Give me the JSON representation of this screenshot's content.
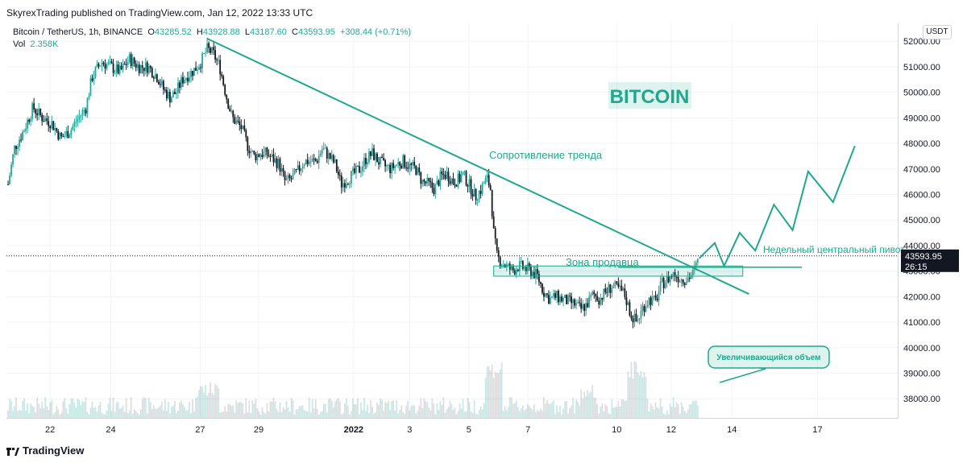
{
  "header": {
    "publisher": "SkyrexTrading published on TradingView.com, Jan 12, 2022 13:33 UTC"
  },
  "legend": {
    "symbol": "Bitcoin / TetherUS, 1h, BINANCE",
    "open_label": "O",
    "open": "43285.52",
    "high_label": "H",
    "high": "43928.88",
    "low_label": "L",
    "low": "43187.60",
    "close_label": "C",
    "close": "43593.95",
    "change": "+308.44 (+0.71%)",
    "vol_label": "Vol",
    "vol": "2.358K"
  },
  "currency": "USDT",
  "price_tag": {
    "price": "43593.95",
    "countdown": "26:15"
  },
  "footer": {
    "brand": "TradingView"
  },
  "colors": {
    "up": "#26a69a",
    "down": "#131722",
    "accent": "#1fa88e",
    "grid": "#f0f3fa"
  },
  "annotations": {
    "watermark": "BITCOIN",
    "trend_resistance": "Сопротивление тренда",
    "seller_zone": "Зона продавца",
    "weekly_pivot": "Недельный центральный пивот",
    "increasing_volume": "Увеличивающийся объем"
  },
  "chart_data": {
    "type": "candlestick",
    "title": "Bitcoin / TetherUS, 1h, BINANCE",
    "y_ticks": [
      38000,
      39000,
      40000,
      41000,
      42000,
      43000,
      44000,
      45000,
      46000,
      47000,
      48000,
      49000,
      50000,
      51000,
      52000
    ],
    "y_tick_labels": [
      "38000.00",
      "39000.00",
      "40000.00",
      "41000.00",
      "42000.00",
      "43000.00",
      "44000.00",
      "45000.00",
      "46000.00",
      "47000.00",
      "48000.00",
      "49000.00",
      "50000.00",
      "51000.00",
      "52000.00"
    ],
    "ylim": [
      37250,
      52700
    ],
    "x_ticks": [
      {
        "label": "22",
        "bold": false
      },
      {
        "label": "24",
        "bold": false
      },
      {
        "label": "27",
        "bold": false
      },
      {
        "label": "29",
        "bold": false
      },
      {
        "label": "2022",
        "bold": true
      },
      {
        "label": "3",
        "bold": false
      },
      {
        "label": "5",
        "bold": false
      },
      {
        "label": "7",
        "bold": false
      },
      {
        "label": "10",
        "bold": false
      },
      {
        "label": "12",
        "bold": false
      },
      {
        "label": "14",
        "bold": false
      },
      {
        "label": "17",
        "bold": false
      }
    ],
    "x_tick_index": [
      0.135,
      0.33,
      0.617,
      0.805,
      1.11,
      1.29,
      1.48,
      1.67,
      1.955,
      2.13,
      2.325,
      2.6
    ],
    "price_path": [
      [
        0.0,
        46400
      ],
      [
        0.02,
        47800
      ],
      [
        0.05,
        48500
      ],
      [
        0.08,
        49400
      ],
      [
        0.11,
        49000
      ],
      [
        0.14,
        48800
      ],
      [
        0.17,
        48200
      ],
      [
        0.2,
        48500
      ],
      [
        0.22,
        48900
      ],
      [
        0.25,
        49400
      ],
      [
        0.27,
        50600
      ],
      [
        0.3,
        51200
      ],
      [
        0.33,
        51000
      ],
      [
        0.36,
        50800
      ],
      [
        0.39,
        51300
      ],
      [
        0.42,
        51000
      ],
      [
        0.45,
        51000
      ],
      [
        0.48,
        50600
      ],
      [
        0.5,
        50100
      ],
      [
        0.52,
        49800
      ],
      [
        0.54,
        50000
      ],
      [
        0.56,
        50500
      ],
      [
        0.58,
        50700
      ],
      [
        0.6,
        50900
      ],
      [
        0.62,
        51200
      ],
      [
        0.64,
        51700
      ],
      [
        0.66,
        51500
      ],
      [
        0.68,
        51000
      ],
      [
        0.7,
        49900
      ],
      [
        0.72,
        49000
      ],
      [
        0.75,
        48600
      ],
      [
        0.77,
        47900
      ],
      [
        0.79,
        47500
      ],
      [
        0.81,
        47600
      ],
      [
        0.83,
        47600
      ],
      [
        0.85,
        47400
      ],
      [
        0.87,
        47200
      ],
      [
        0.89,
        46500
      ],
      [
        0.91,
        46600
      ],
      [
        0.93,
        46900
      ],
      [
        0.95,
        47300
      ],
      [
        0.97,
        47300
      ],
      [
        0.99,
        47300
      ],
      [
        1.01,
        47800
      ],
      [
        1.03,
        47500
      ],
      [
        1.05,
        47200
      ],
      [
        1.07,
        46400
      ],
      [
        1.09,
        46600
      ],
      [
        1.11,
        46800
      ],
      [
        1.13,
        47000
      ],
      [
        1.15,
        47400
      ],
      [
        1.17,
        47600
      ],
      [
        1.19,
        47300
      ],
      [
        1.21,
        47100
      ],
      [
        1.23,
        47000
      ],
      [
        1.25,
        47200
      ],
      [
        1.27,
        47300
      ],
      [
        1.29,
        47100
      ],
      [
        1.31,
        47000
      ],
      [
        1.33,
        46500
      ],
      [
        1.35,
        46400
      ],
      [
        1.37,
        46200
      ],
      [
        1.39,
        46700
      ],
      [
        1.41,
        46800
      ],
      [
        1.43,
        46500
      ],
      [
        1.45,
        46600
      ],
      [
        1.46,
        46800
      ],
      [
        1.47,
        46600
      ],
      [
        1.49,
        46200
      ],
      [
        1.5,
        45900
      ],
      [
        1.52,
        46200
      ],
      [
        1.53,
        46500
      ],
      [
        1.54,
        46600
      ],
      [
        1.55,
        46200
      ],
      [
        1.56,
        44500
      ],
      [
        1.57,
        43600
      ],
      [
        1.58,
        43400
      ],
      [
        1.6,
        43200
      ],
      [
        1.62,
        43000
      ],
      [
        1.64,
        43200
      ],
      [
        1.66,
        43100
      ],
      [
        1.68,
        43000
      ],
      [
        1.7,
        42800
      ],
      [
        1.72,
        42200
      ],
      [
        1.74,
        41900
      ],
      [
        1.76,
        42000
      ],
      [
        1.78,
        41900
      ],
      [
        1.8,
        41800
      ],
      [
        1.82,
        41700
      ],
      [
        1.84,
        41500
      ],
      [
        1.86,
        41700
      ],
      [
        1.88,
        42100
      ],
      [
        1.9,
        41900
      ],
      [
        1.92,
        42200
      ],
      [
        1.94,
        42400
      ],
      [
        1.96,
        42300
      ],
      [
        1.98,
        42100
      ],
      [
        2.0,
        41300
      ],
      [
        2.02,
        41000
      ],
      [
        2.04,
        41600
      ],
      [
        2.06,
        41900
      ],
      [
        2.08,
        41800
      ],
      [
        2.09,
        42200
      ],
      [
        2.1,
        42500
      ],
      [
        2.12,
        42700
      ],
      [
        2.14,
        42900
      ],
      [
        2.16,
        42700
      ],
      [
        2.18,
        42700
      ],
      [
        2.2,
        42900
      ],
      [
        2.22,
        43500
      ]
    ],
    "volume_scale": "Vol",
    "trendline": [
      [
        0.64,
        52100
      ],
      [
        2.38,
        42100
      ]
    ],
    "seller_zone": {
      "x0": 1.56,
      "x1": 2.36,
      "y0": 42800,
      "y1": 43200
    },
    "weekly_pivot": {
      "x0": 1.96,
      "x1": 2.55,
      "y": 43150
    },
    "projection": [
      [
        2.22,
        43500
      ],
      [
        2.27,
        44100
      ],
      [
        2.3,
        43200
      ],
      [
        2.35,
        44500
      ],
      [
        2.4,
        43800
      ],
      [
        2.46,
        45600
      ],
      [
        2.52,
        44600
      ],
      [
        2.57,
        46900
      ],
      [
        2.65,
        45700
      ],
      [
        2.72,
        47900
      ]
    ],
    "current_price": 43593.95,
    "volume_arrow": [
      [
        2.285,
        38600
      ],
      [
        2.41,
        39000
      ]
    ]
  }
}
